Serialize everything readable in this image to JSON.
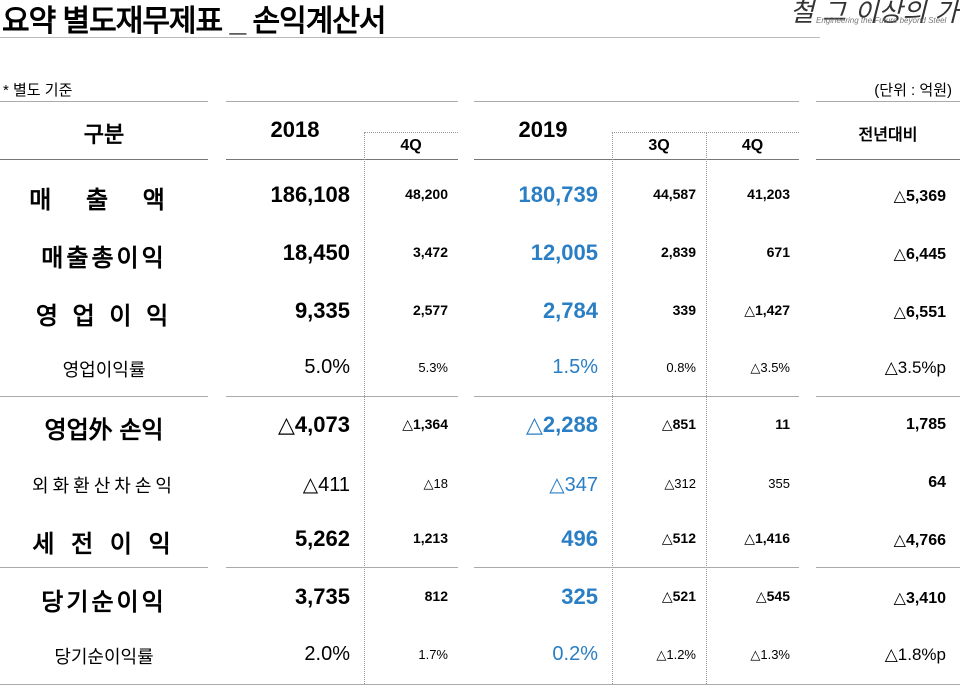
{
  "title": "요약 별도재무제표 _ 손익계산서",
  "logo": {
    "script": "철 그 이상의 가치창조",
    "tagline": "Engineering the Future beyond Steel"
  },
  "note": "* 별도 기준",
  "unit": "(단위 : 억원)",
  "headers": {
    "category": "구분",
    "y2018": "2018",
    "q4_2018": "4Q",
    "y2019": "2019",
    "q3_2019": "3Q",
    "q4_2019": "4Q",
    "yoy": "전년대비"
  },
  "rows": [
    {
      "label": "매  출  액",
      "y2018": "186,108",
      "q4_2018": "48,200",
      "y2019": "180,739",
      "q3_2019": "44,587",
      "q4_2019": "41,203",
      "yoy": "△5,369"
    },
    {
      "label": "매출총이익",
      "y2018": "18,450",
      "q4_2018": "3,472",
      "y2019": "12,005",
      "q3_2019": "2,839",
      "q4_2019": "671",
      "yoy": "△6,445"
    },
    {
      "label": "영 업 이 익",
      "y2018": "9,335",
      "q4_2018": "2,577",
      "y2019": "2,784",
      "q3_2019": "339",
      "q4_2019": "△1,427",
      "yoy": "△6,551"
    },
    {
      "label": "영업이익률",
      "y2018": "5.0%",
      "q4_2018": "5.3%",
      "y2019": "1.5%",
      "q3_2019": "0.8%",
      "q4_2019": "△3.5%",
      "yoy": "△3.5%p"
    },
    {
      "label": "영업外 손익",
      "y2018": "△4,073",
      "q4_2018": "△1,364",
      "y2019": "△2,288",
      "q3_2019": "△851",
      "q4_2019": "11",
      "yoy": "1,785"
    },
    {
      "label": "외화환산차손익",
      "y2018": "△411",
      "q4_2018": "△18",
      "y2019": "△347",
      "q3_2019": "△312",
      "q4_2019": "355",
      "yoy": "64"
    },
    {
      "label": "세 전 이 익",
      "y2018": "5,262",
      "q4_2018": "1,213",
      "y2019": "496",
      "q3_2019": "△512",
      "q4_2019": "△1,416",
      "yoy": "△4,766"
    },
    {
      "label": "당기순이익",
      "y2018": "3,735",
      "q4_2018": "812",
      "y2019": "325",
      "q3_2019": "△521",
      "q4_2019": "△545",
      "yoy": "△3,410"
    },
    {
      "label": "당기순이익률",
      "y2018": "2.0%",
      "q4_2018": "1.7%",
      "y2019": "0.2%",
      "q3_2019": "△1.2%",
      "q4_2019": "△1.3%",
      "yoy": "△1.8%p"
    }
  ],
  "colors": {
    "highlight_2019": "#2a7ec4",
    "rule": "#aaaaaa"
  }
}
